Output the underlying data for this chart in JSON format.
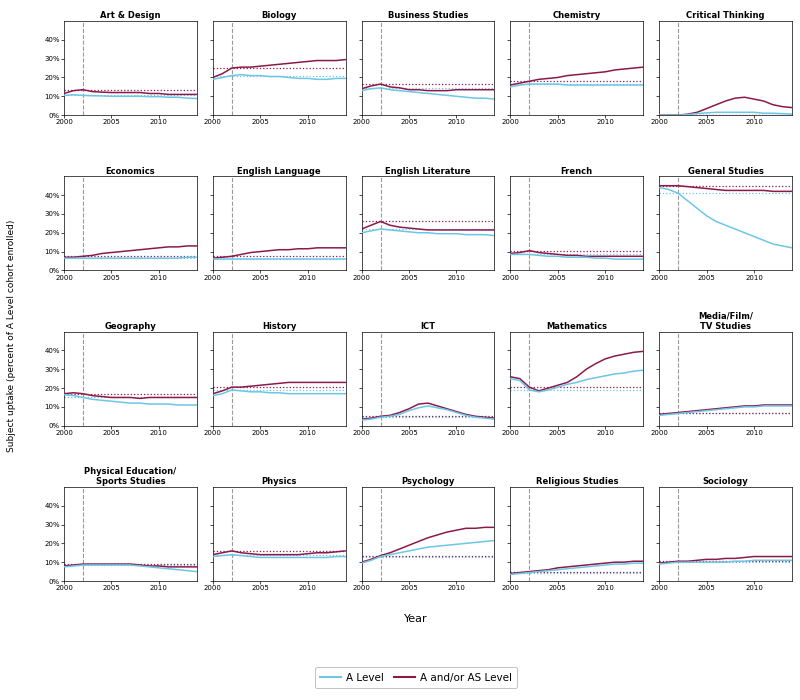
{
  "subjects": [
    "Art & Design",
    "Biology",
    "Business Studies",
    "Chemistry",
    "Critical Thinking",
    "Economics",
    "English Language",
    "English Literature",
    "French",
    "General Studies",
    "Geography",
    "History",
    "ICT",
    "Mathematics",
    "Media/Film/\nTV Studies",
    "Physical Education/\nSports Studies",
    "Physics",
    "Psychology",
    "Religious Studies",
    "Sociology"
  ],
  "years": [
    2000,
    2001,
    2002,
    2003,
    2004,
    2005,
    2006,
    2007,
    2008,
    2009,
    2010,
    2011,
    2012,
    2013,
    2014
  ],
  "color_alevel": "#6DC6E6",
  "color_aslevel": "#8B1A4A",
  "vline_x": 2002,
  "ylim": [
    0,
    50
  ],
  "yticks": [
    0,
    10,
    20,
    30,
    40
  ],
  "ytick_labels": [
    "0%",
    "10%",
    "20%",
    "30%",
    "40%"
  ],
  "series": {
    "Art & Design": {
      "alevel": [
        10.5,
        10.8,
        10.5,
        10.3,
        10.2,
        10.0,
        10.0,
        10.0,
        10.0,
        9.8,
        9.8,
        9.5,
        9.5,
        9.0,
        8.8
      ],
      "aslevel": [
        11.5,
        13.0,
        13.5,
        12.5,
        12.2,
        12.0,
        12.0,
        12.0,
        12.0,
        11.5,
        11.5,
        11.0,
        11.0,
        11.0,
        11.0
      ]
    },
    "Biology": {
      "alevel": [
        19.0,
        20.0,
        21.0,
        21.5,
        21.0,
        21.0,
        20.5,
        20.5,
        20.0,
        19.5,
        19.5,
        19.0,
        19.0,
        19.5,
        19.5
      ],
      "aslevel": [
        20.0,
        22.0,
        25.0,
        25.5,
        25.5,
        26.0,
        26.5,
        27.0,
        27.5,
        28.0,
        28.5,
        29.0,
        29.0,
        29.0,
        29.5
      ]
    },
    "Business Studies": {
      "alevel": [
        13.0,
        14.0,
        14.5,
        13.5,
        13.0,
        12.5,
        12.0,
        11.5,
        11.0,
        10.5,
        10.0,
        9.5,
        9.0,
        9.0,
        8.5
      ],
      "aslevel": [
        14.0,
        15.5,
        16.5,
        15.0,
        14.5,
        13.5,
        13.5,
        13.0,
        13.0,
        13.0,
        13.5,
        13.5,
        13.5,
        13.5,
        13.5
      ]
    },
    "Chemistry": {
      "alevel": [
        15.0,
        16.0,
        16.5,
        16.5,
        16.5,
        16.5,
        16.0,
        16.0,
        16.0,
        16.0,
        16.0,
        16.0,
        16.0,
        16.0,
        16.0
      ],
      "aslevel": [
        16.0,
        17.0,
        18.0,
        19.0,
        19.5,
        20.0,
        21.0,
        21.5,
        22.0,
        22.5,
        23.0,
        24.0,
        24.5,
        25.0,
        25.5
      ]
    },
    "Critical Thinking": {
      "alevel": [
        0.0,
        0.0,
        0.0,
        0.3,
        0.8,
        1.2,
        1.5,
        1.5,
        1.5,
        1.5,
        1.5,
        1.0,
        1.0,
        0.8,
        0.5
      ],
      "aslevel": [
        0.0,
        0.0,
        0.0,
        0.5,
        1.5,
        3.5,
        5.5,
        7.5,
        9.0,
        9.5,
        8.5,
        7.5,
        5.5,
        4.5,
        4.0
      ]
    },
    "Economics": {
      "alevel": [
        6.5,
        6.5,
        6.5,
        6.5,
        6.5,
        6.5,
        6.5,
        6.5,
        6.5,
        6.5,
        6.5,
        6.5,
        6.5,
        7.0,
        7.0
      ],
      "aslevel": [
        7.0,
        7.0,
        7.5,
        8.0,
        9.0,
        9.5,
        10.0,
        10.5,
        11.0,
        11.5,
        12.0,
        12.5,
        12.5,
        13.0,
        13.0
      ]
    },
    "English Language": {
      "alevel": [
        6.0,
        6.0,
        6.0,
        6.0,
        6.0,
        6.0,
        6.0,
        6.0,
        6.0,
        6.0,
        6.0,
        6.0,
        6.0,
        6.0,
        6.0
      ],
      "aslevel": [
        6.5,
        7.0,
        7.5,
        8.5,
        9.5,
        10.0,
        10.5,
        11.0,
        11.0,
        11.5,
        11.5,
        12.0,
        12.0,
        12.0,
        12.0
      ]
    },
    "English Literature": {
      "alevel": [
        20.0,
        21.0,
        22.0,
        21.5,
        21.0,
        20.5,
        20.0,
        20.0,
        19.5,
        19.5,
        19.5,
        19.0,
        19.0,
        19.0,
        18.5
      ],
      "aslevel": [
        22.0,
        24.0,
        26.0,
        24.0,
        23.0,
        22.5,
        22.0,
        21.5,
        21.5,
        21.5,
        21.5,
        21.5,
        21.5,
        21.5,
        21.5
      ]
    },
    "French": {
      "alevel": [
        8.5,
        8.5,
        8.5,
        8.0,
        7.5,
        7.5,
        7.0,
        7.0,
        7.0,
        6.5,
        6.5,
        6.0,
        6.0,
        6.0,
        6.0
      ],
      "aslevel": [
        9.0,
        9.5,
        10.5,
        9.5,
        9.0,
        8.5,
        8.0,
        8.0,
        7.5,
        7.5,
        7.5,
        7.5,
        7.5,
        7.5,
        7.5
      ]
    },
    "General Studies": {
      "alevel": [
        44.0,
        43.0,
        41.0,
        37.0,
        33.0,
        29.0,
        26.0,
        24.0,
        22.0,
        20.0,
        18.0,
        16.0,
        14.0,
        13.0,
        12.0
      ],
      "aslevel": [
        45.0,
        45.0,
        45.0,
        44.5,
        44.0,
        43.5,
        43.0,
        42.5,
        42.5,
        42.5,
        42.5,
        42.5,
        42.0,
        42.0,
        42.0
      ]
    },
    "Geography": {
      "alevel": [
        16.5,
        16.0,
        15.0,
        14.0,
        13.5,
        13.0,
        12.5,
        12.0,
        12.0,
        11.5,
        11.5,
        11.5,
        11.0,
        11.0,
        11.0
      ],
      "aslevel": [
        17.0,
        17.5,
        17.0,
        16.0,
        15.5,
        15.0,
        15.0,
        15.0,
        14.5,
        15.0,
        15.0,
        15.0,
        15.0,
        15.0,
        15.0
      ]
    },
    "History": {
      "alevel": [
        16.0,
        17.0,
        19.0,
        18.5,
        18.0,
        18.0,
        17.5,
        17.5,
        17.0,
        17.0,
        17.0,
        17.0,
        17.0,
        17.0,
        17.0
      ],
      "aslevel": [
        17.0,
        18.5,
        20.5,
        20.5,
        21.0,
        21.5,
        22.0,
        22.5,
        23.0,
        23.0,
        23.0,
        23.0,
        23.0,
        23.0,
        23.0
      ]
    },
    "ICT": {
      "alevel": [
        3.0,
        3.5,
        4.5,
        5.0,
        6.0,
        8.0,
        9.5,
        10.5,
        9.5,
        8.5,
        7.0,
        5.5,
        4.5,
        4.0,
        3.5
      ],
      "aslevel": [
        3.5,
        4.0,
        5.0,
        5.5,
        7.0,
        9.0,
        11.5,
        12.0,
        10.5,
        9.0,
        7.5,
        6.0,
        5.0,
        4.5,
        4.0
      ]
    },
    "Mathematics": {
      "alevel": [
        25.0,
        24.0,
        19.0,
        18.0,
        19.0,
        20.5,
        22.0,
        23.0,
        24.5,
        25.5,
        26.5,
        27.5,
        28.0,
        29.0,
        29.5
      ],
      "aslevel": [
        26.0,
        25.0,
        20.5,
        18.5,
        20.0,
        21.5,
        23.0,
        26.0,
        30.0,
        33.0,
        35.5,
        37.0,
        38.0,
        39.0,
        39.5
      ]
    },
    "Media/Film/\nTV Studies": {
      "alevel": [
        5.5,
        6.0,
        6.5,
        7.0,
        7.5,
        8.0,
        8.5,
        9.0,
        9.5,
        10.0,
        10.0,
        10.5,
        10.5,
        10.5,
        10.5
      ],
      "aslevel": [
        6.0,
        6.5,
        7.0,
        7.5,
        8.0,
        8.5,
        9.0,
        9.5,
        10.0,
        10.5,
        10.5,
        11.0,
        11.0,
        11.0,
        11.0
      ]
    },
    "Physical Education/\nSports Studies": {
      "alevel": [
        7.5,
        8.0,
        8.5,
        8.5,
        8.5,
        8.5,
        8.5,
        8.5,
        8.0,
        7.5,
        7.0,
        6.5,
        6.0,
        5.5,
        5.0
      ],
      "aslevel": [
        8.0,
        8.5,
        9.0,
        9.0,
        9.0,
        9.0,
        9.0,
        9.0,
        8.5,
        8.0,
        8.0,
        7.5,
        7.5,
        7.5,
        7.5
      ]
    },
    "Physics": {
      "alevel": [
        13.0,
        13.5,
        14.0,
        13.5,
        13.0,
        12.5,
        12.5,
        12.5,
        12.5,
        12.5,
        12.5,
        12.5,
        12.5,
        13.0,
        13.0
      ],
      "aslevel": [
        14.0,
        15.0,
        16.0,
        15.0,
        14.5,
        14.0,
        14.0,
        14.0,
        14.0,
        14.0,
        14.5,
        15.0,
        15.0,
        15.5,
        16.0
      ]
    },
    "Psychology": {
      "alevel": [
        9.5,
        11.0,
        13.0,
        14.0,
        15.0,
        16.0,
        17.0,
        18.0,
        18.5,
        19.0,
        19.5,
        20.0,
        20.5,
        21.0,
        21.5
      ],
      "aslevel": [
        10.0,
        11.5,
        13.5,
        15.0,
        17.0,
        19.0,
        21.0,
        23.0,
        24.5,
        26.0,
        27.0,
        28.0,
        28.0,
        28.5,
        28.5
      ]
    },
    "Religious Studies": {
      "alevel": [
        3.5,
        4.0,
        4.5,
        5.0,
        5.5,
        6.0,
        6.5,
        7.0,
        7.5,
        8.0,
        8.5,
        9.0,
        9.0,
        9.5,
        9.5
      ],
      "aslevel": [
        4.0,
        4.5,
        5.0,
        5.5,
        6.0,
        7.0,
        7.5,
        8.0,
        8.5,
        9.0,
        9.5,
        10.0,
        10.0,
        10.5,
        10.5
      ]
    },
    "Sociology": {
      "alevel": [
        9.0,
        9.5,
        10.0,
        10.0,
        10.0,
        10.0,
        10.0,
        10.0,
        10.5,
        10.5,
        11.0,
        11.0,
        11.0,
        11.0,
        11.0
      ],
      "aslevel": [
        9.5,
        10.0,
        10.5,
        10.5,
        11.0,
        11.5,
        11.5,
        12.0,
        12.0,
        12.5,
        13.0,
        13.0,
        13.0,
        13.0,
        13.0
      ]
    }
  },
  "ylabel": "Subject uptake (percent of A Level cohort enrolled)",
  "xlabel": "Year",
  "legend_alevel": "A Level",
  "legend_aslevel": "A and/or AS Level"
}
